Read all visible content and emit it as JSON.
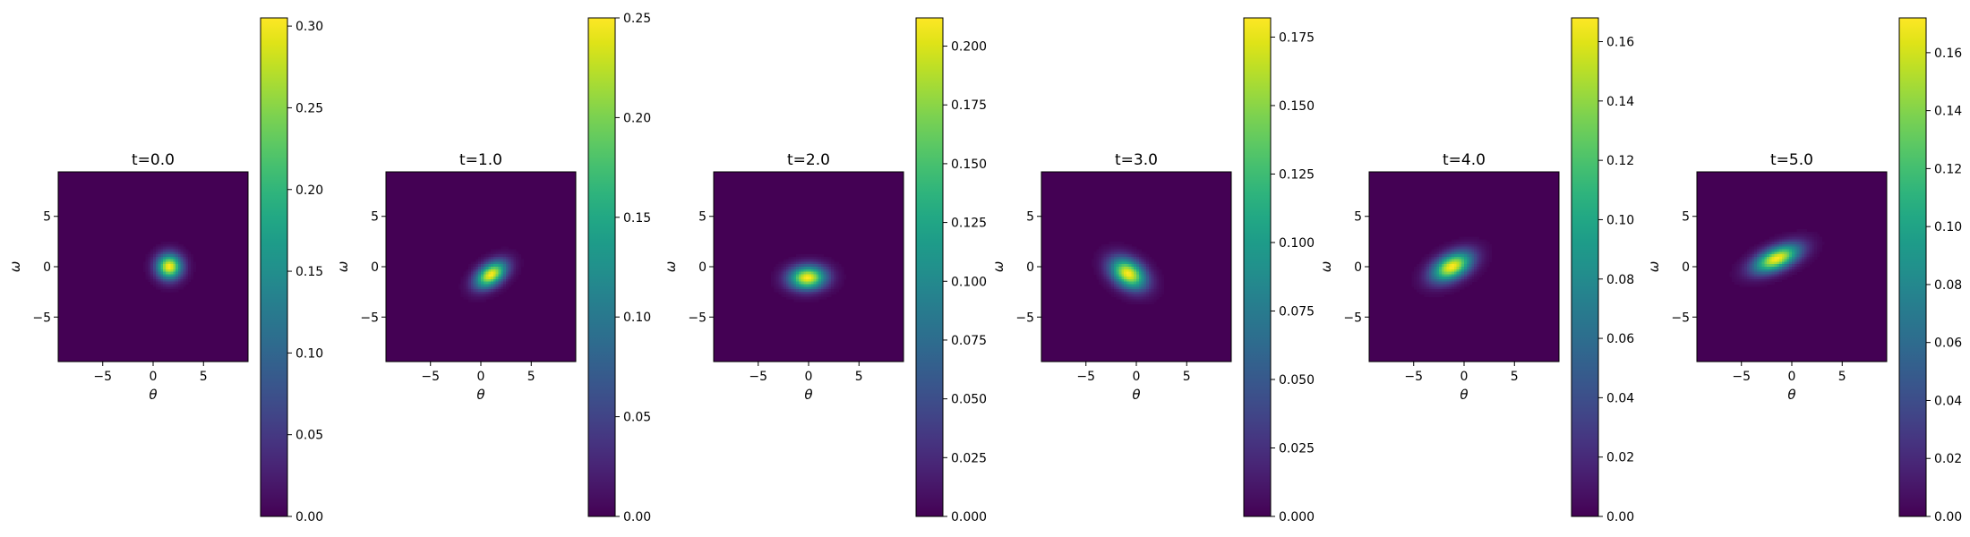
{
  "chart_data": [
    {
      "type": "heatmap",
      "title": "t=0.0",
      "xlabel": "θ",
      "ylabel": "ω",
      "xlim": [
        -9.42,
        9.42
      ],
      "ylim": [
        -9.42,
        9.42
      ],
      "xticks": [
        -5,
        0,
        5
      ],
      "xtick_labels": [
        "−5",
        "0",
        "5"
      ],
      "yticks": [
        5,
        0,
        -5
      ],
      "ytick_labels": [
        "5",
        "0",
        "−5"
      ],
      "colormap": "viridis",
      "colorbar": {
        "min": 0.0,
        "max": 0.305,
        "ticks": [
          0.0,
          0.05,
          0.1,
          0.15,
          0.2,
          0.25,
          0.3
        ],
        "tick_labels": [
          "0.00",
          "0.05",
          "0.10",
          "0.15",
          "0.20",
          "0.25",
          "0.30"
        ]
      },
      "peak": {
        "theta": 1.6,
        "omega": 0.0,
        "value": 0.305,
        "sigma_theta": 0.85,
        "sigma_omega": 0.85,
        "rho": 0.0
      }
    },
    {
      "type": "heatmap",
      "title": "t=1.0",
      "xlabel": "θ",
      "ylabel": "ω",
      "xlim": [
        -9.42,
        9.42
      ],
      "ylim": [
        -9.42,
        9.42
      ],
      "xticks": [
        -5,
        0,
        5
      ],
      "xtick_labels": [
        "−5",
        "0",
        "5"
      ],
      "yticks": [
        5,
        0,
        -5
      ],
      "ytick_labels": [
        "5",
        "0",
        "−5"
      ],
      "colormap": "viridis",
      "colorbar": {
        "min": 0.0,
        "max": 0.25,
        "ticks": [
          0.0,
          0.05,
          0.1,
          0.15,
          0.2,
          0.25
        ],
        "tick_labels": [
          "0.00",
          "0.05",
          "0.10",
          "0.15",
          "0.20",
          "0.25"
        ]
      },
      "peak": {
        "theta": 1.0,
        "omega": -0.8,
        "value": 0.25,
        "sigma_theta": 1.05,
        "sigma_omega": 0.9,
        "rho": 0.45
      }
    },
    {
      "type": "heatmap",
      "title": "t=2.0",
      "xlabel": "θ",
      "ylabel": "ω",
      "xlim": [
        -9.42,
        9.42
      ],
      "ylim": [
        -9.42,
        9.42
      ],
      "xticks": [
        -5,
        0,
        5
      ],
      "xtick_labels": [
        "−5",
        "0",
        "5"
      ],
      "yticks": [
        5,
        0,
        -5
      ],
      "ytick_labels": [
        "5",
        "0",
        "−5"
      ],
      "colormap": "viridis",
      "colorbar": {
        "min": 0.0,
        "max": 0.212,
        "ticks": [
          0.0,
          0.025,
          0.05,
          0.075,
          0.1,
          0.125,
          0.15,
          0.175,
          0.2
        ],
        "tick_labels": [
          "0.000",
          "0.025",
          "0.050",
          "0.075",
          "0.100",
          "0.125",
          "0.150",
          "0.175",
          "0.200"
        ]
      },
      "peak": {
        "theta": -0.1,
        "omega": -1.1,
        "value": 0.212,
        "sigma_theta": 1.25,
        "sigma_omega": 0.8,
        "rho": 0.05
      }
    },
    {
      "type": "heatmap",
      "title": "t=3.0",
      "xlabel": "θ",
      "ylabel": "ω",
      "xlim": [
        -9.42,
        9.42
      ],
      "ylim": [
        -9.42,
        9.42
      ],
      "xticks": [
        -5,
        0,
        5
      ],
      "xtick_labels": [
        "−5",
        "0",
        "5"
      ],
      "yticks": [
        5,
        0,
        -5
      ],
      "ytick_labels": [
        "5",
        "0",
        "−5"
      ],
      "colormap": "viridis",
      "colorbar": {
        "min": 0.0,
        "max": 0.182,
        "ticks": [
          0.0,
          0.025,
          0.05,
          0.075,
          0.1,
          0.125,
          0.15,
          0.175
        ],
        "tick_labels": [
          "0.000",
          "0.025",
          "0.050",
          "0.075",
          "0.100",
          "0.125",
          "0.150",
          "0.175"
        ]
      },
      "peak": {
        "theta": -0.8,
        "omega": -0.7,
        "value": 0.182,
        "sigma_theta": 1.2,
        "sigma_omega": 1.05,
        "rho": -0.35
      }
    },
    {
      "type": "heatmap",
      "title": "t=4.0",
      "xlabel": "θ",
      "ylabel": "ω",
      "xlim": [
        -9.42,
        9.42
      ],
      "ylim": [
        -9.42,
        9.42
      ],
      "xticks": [
        -5,
        0,
        5
      ],
      "xtick_labels": [
        "−5",
        "0",
        "5"
      ],
      "yticks": [
        5,
        0,
        -5
      ],
      "ytick_labels": [
        "5",
        "0",
        "−5"
      ],
      "colormap": "viridis",
      "colorbar": {
        "min": 0.0,
        "max": 0.168,
        "ticks": [
          0.0,
          0.02,
          0.04,
          0.06,
          0.08,
          0.1,
          0.12,
          0.14,
          0.16
        ],
        "tick_labels": [
          "0.00",
          "0.02",
          "0.04",
          "0.06",
          "0.08",
          "0.10",
          "0.12",
          "0.14",
          "0.16"
        ]
      },
      "peak": {
        "theta": -1.2,
        "omega": 0.0,
        "value": 0.168,
        "sigma_theta": 1.35,
        "sigma_omega": 1.0,
        "rho": 0.45
      }
    },
    {
      "type": "heatmap",
      "title": "t=5.0",
      "xlabel": "θ",
      "ylabel": "ω",
      "xlim": [
        -9.42,
        9.42
      ],
      "ylim": [
        -9.42,
        9.42
      ],
      "xticks": [
        -5,
        0,
        5
      ],
      "xtick_labels": [
        "−5",
        "0",
        "5"
      ],
      "yticks": [
        5,
        0,
        -5
      ],
      "ytick_labels": [
        "5",
        "0",
        "−5"
      ],
      "colormap": "viridis",
      "colorbar": {
        "min": 0.0,
        "max": 0.172,
        "ticks": [
          0.0,
          0.02,
          0.04,
          0.06,
          0.08,
          0.1,
          0.12,
          0.14,
          0.16
        ],
        "tick_labels": [
          "0.00",
          "0.02",
          "0.04",
          "0.06",
          "0.08",
          "0.10",
          "0.12",
          "0.14",
          "0.16"
        ]
      },
      "peak": {
        "theta": -1.5,
        "omega": 0.8,
        "value": 0.172,
        "sigma_theta": 1.55,
        "sigma_omega": 0.95,
        "rho": 0.55
      }
    }
  ]
}
